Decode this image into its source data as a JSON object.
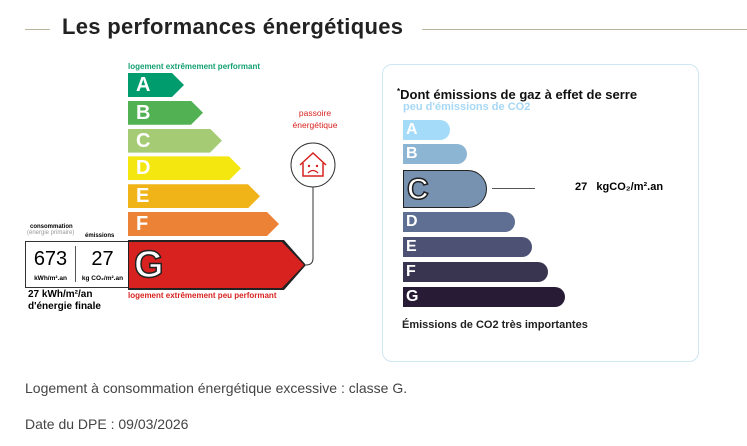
{
  "title": "Les performances énergétiques",
  "energy": {
    "top_label": "logement extrêmement performant",
    "bottom_label": "logement extrêmement peu performant",
    "classes": [
      "A",
      "B",
      "C",
      "D",
      "E",
      "F",
      "G"
    ],
    "colors": [
      "#009c6d",
      "#52b153",
      "#a5cc74",
      "#f4e70f",
      "#f0b419",
      "#eb8235",
      "#d7221f"
    ],
    "current": "G",
    "consumption_header": "consommation",
    "consumption_sub": "(énergie primaire)",
    "emissions_header": "émissions",
    "consumption_value": "673",
    "consumption_unit": "kWh/m².an",
    "emissions_value": "27",
    "emissions_unit": "kg CO₂/m².an",
    "final_energy_1": "27 kWh/m²/an",
    "final_energy_2": "d'énergie finale",
    "passoire_1": "passoire",
    "passoire_2": "énergétique"
  },
  "co2": {
    "title": "Dont émissions de gaz à effet de serre",
    "asterisk": "*",
    "top_label": "peu d'émissions de CO2",
    "classes": [
      "A",
      "B",
      "C",
      "D",
      "E",
      "F",
      "G"
    ],
    "colors": [
      "#a4dbf8",
      "#8cb4d3",
      "#7792b1",
      "#5e6f93",
      "#4d5275",
      "#393551",
      "#281b35"
    ],
    "current": "C",
    "value": "27",
    "unit": "kgCO₂/m².an",
    "bottom_label": "Émissions de CO2 très importantes"
  },
  "footer": {
    "statement": "Logement à consommation énergétique excessive : classe G.",
    "date": "Date du DPE : 09/03/2026"
  }
}
